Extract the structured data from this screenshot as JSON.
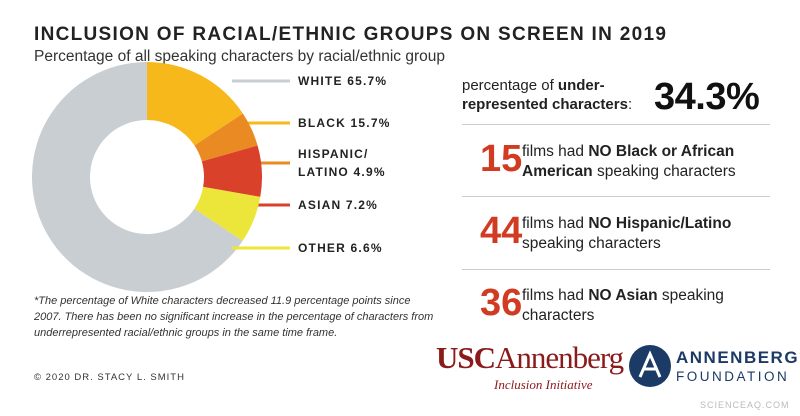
{
  "chart_data": {
    "type": "pie",
    "title": "INCLUSION OF RACIAL/ETHNIC GROUPS ON SCREEN IN 2019",
    "subtitle": "Percentage of all speaking characters by racial/ethnic group",
    "categories": [
      "WHITE",
      "BLACK",
      "HISPANIC/ LATINO",
      "ASIAN",
      "OTHER"
    ],
    "values": [
      65.7,
      15.7,
      4.9,
      7.2,
      6.6
    ],
    "value_labels": [
      "65.7%",
      "15.7%",
      "4.9%",
      "7.2%",
      "6.6%"
    ],
    "colors": [
      "#c9ced2",
      "#f6b81a",
      "#ea8a23",
      "#d9412b",
      "#ece53a"
    ],
    "donut": true
  },
  "stat": {
    "text": [
      "percentage of ",
      "under-represented characters",
      ":"
    ],
    "value": "34.3%"
  },
  "rows": [
    {
      "number": "15",
      "text": [
        "films had ",
        "NO Black or African American",
        " speaking characters"
      ]
    },
    {
      "number": "44",
      "text": [
        "films had ",
        "NO Hispanic/Latino",
        " speaking characters"
      ]
    },
    {
      "number": "36",
      "text": [
        "films had ",
        "NO Asian",
        " speaking characters"
      ]
    }
  ],
  "footnote": "*The percentage of White characters decreased 11.9 percentage points since 2007. There has been no significant increase in the percentage of characters from underrepresented racial/ethnic groups in the same time frame.",
  "copyright": "© 2020 DR. STACY L. SMITH",
  "logos": {
    "usc": "USC",
    "annenberg": "Annenberg",
    "initiative": "Inclusion Initiative",
    "foundation_1": "ANNENBERG",
    "foundation_2": "FOUNDATION"
  },
  "watermark": "SCIENCEAQ.COM"
}
